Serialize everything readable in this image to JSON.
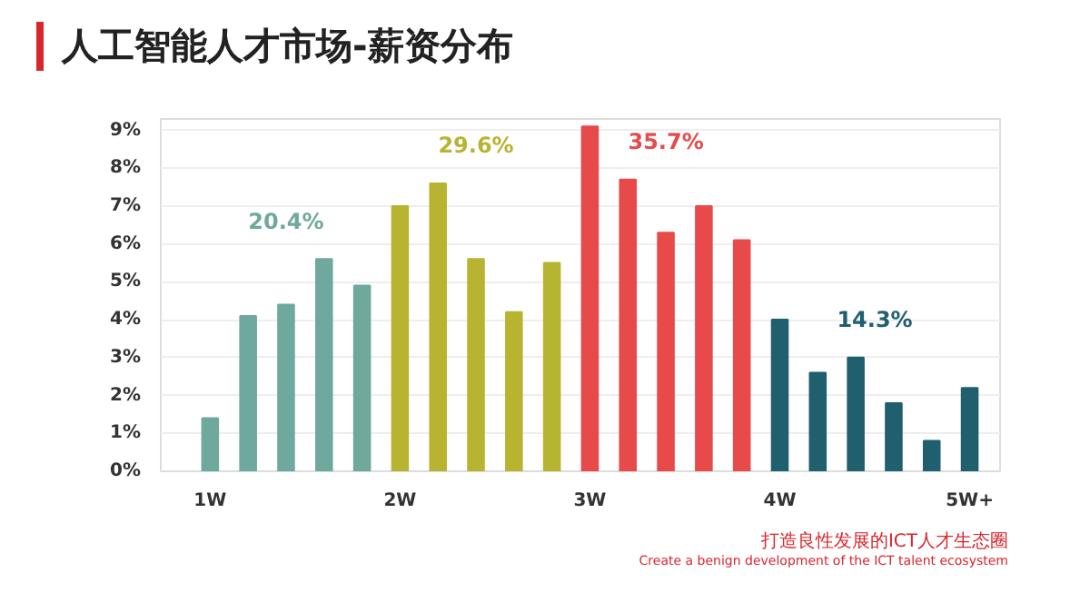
{
  "chart_data": {
    "type": "bar",
    "title": "人工智能人才市场-薪资分布",
    "categories": [
      "1W",
      null,
      null,
      null,
      null,
      "2W",
      null,
      null,
      null,
      null,
      "3W",
      null,
      null,
      null,
      null,
      "4W",
      null,
      null,
      null,
      null,
      "5W+"
    ],
    "series": [
      {
        "name": "20.4%",
        "color": "#6fa89c",
        "values": [
          1.4,
          4.1,
          4.4,
          5.6,
          4.9,
          null,
          null,
          null,
          null,
          null,
          null,
          null,
          null,
          null,
          null,
          null,
          null,
          null,
          null,
          null,
          null
        ]
      },
      {
        "name": "29.6%",
        "color": "#b8b432",
        "values": [
          null,
          null,
          null,
          null,
          null,
          7.0,
          7.6,
          5.6,
          4.2,
          5.5,
          null,
          null,
          null,
          null,
          null,
          null,
          null,
          null,
          null,
          null,
          null
        ]
      },
      {
        "name": "35.7%",
        "color": "#e84a4a",
        "values": [
          null,
          null,
          null,
          null,
          null,
          null,
          null,
          null,
          null,
          null,
          9.1,
          7.7,
          6.3,
          7.0,
          6.1,
          null,
          null,
          null,
          null,
          null,
          null
        ]
      },
      {
        "name": "14.3%",
        "color": "#1f5f6e",
        "values": [
          null,
          null,
          null,
          null,
          null,
          null,
          null,
          null,
          null,
          null,
          null,
          null,
          null,
          null,
          null,
          4.0,
          2.6,
          3.0,
          1.8,
          0.8,
          2.2
        ]
      }
    ],
    "ylim": [
      0,
      9.3
    ],
    "yticks": [
      {
        "value": 0,
        "label": "0%"
      },
      {
        "value": 1,
        "label": "1%"
      },
      {
        "value": 2,
        "label": "2%"
      },
      {
        "value": 3,
        "label": "3%"
      },
      {
        "value": 4,
        "label": "4%"
      },
      {
        "value": 5,
        "label": "5%"
      },
      {
        "value": 6,
        "label": "6%"
      },
      {
        "value": 7,
        "label": "7%"
      },
      {
        "value": 8,
        "label": "8%"
      },
      {
        "value": 9,
        "label": "9%"
      }
    ],
    "grid": "y",
    "annotations": [
      "打造良性发展的ICT人才生态圈",
      "Create a benign development of the ICT talent ecosystem"
    ]
  }
}
